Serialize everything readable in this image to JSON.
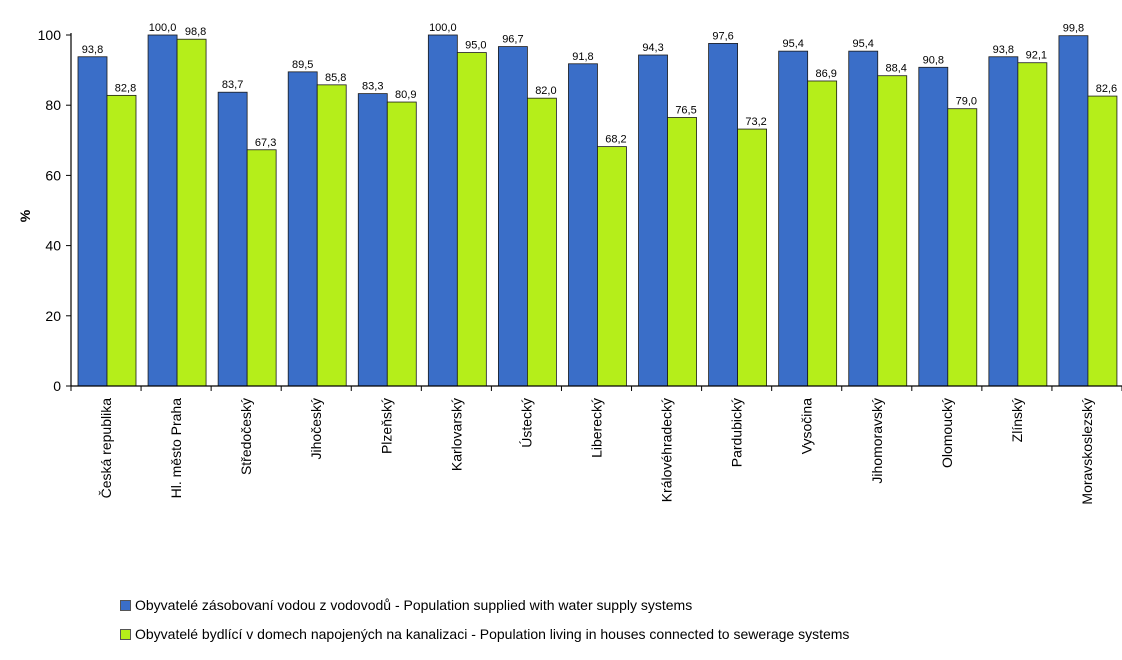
{
  "chart_data": {
    "type": "bar",
    "ylabel": "%",
    "ylim": [
      0,
      100
    ],
    "yticks": [
      0,
      20,
      40,
      60,
      80,
      100
    ],
    "grid": false,
    "legend_position": "bottom",
    "categories": [
      "Česká republika",
      "Hl. město Praha",
      "Středočeský",
      "Jihočeský",
      "Plzeňský",
      "Karlovarský",
      "Ústecký",
      "Liberecký",
      "Královéhradecký",
      "Pardubický",
      "Vysočina",
      "Jihomoravský",
      "Olomoucký",
      "Zlínský",
      "Moravskoslezský"
    ],
    "series": [
      {
        "name": "Obyvatelé zásobovaní vodou z vodovodů - Population supplied with water supply systems",
        "color": "#3a6ec8",
        "values": [
          93.8,
          100.0,
          83.7,
          89.5,
          83.3,
          100.0,
          96.7,
          91.8,
          94.3,
          97.6,
          95.4,
          95.4,
          90.8,
          93.8,
          99.8
        ],
        "labels": [
          "93,8",
          "100,0",
          "83,7",
          "89,5",
          "83,3",
          "100,0",
          "96,7",
          "91,8",
          "94,3",
          "97,6",
          "95,4",
          "95,4",
          "90,8",
          "93,8",
          "99,8"
        ]
      },
      {
        "name": "Obyvatelé bydlící v domech napojených na kanalizaci - Population living in houses connected to sewerage systems",
        "color": "#b5ee1a",
        "values": [
          82.8,
          98.8,
          67.3,
          85.8,
          80.9,
          95.0,
          82.0,
          68.2,
          76.5,
          73.2,
          86.9,
          88.4,
          79.0,
          92.1,
          82.6
        ],
        "labels": [
          "82,8",
          "98,8",
          "67,3",
          "85,8",
          "80,9",
          "95,0",
          "82,0",
          "68,2",
          "76,5",
          "73,2",
          "86,9",
          "88,4",
          "79,0",
          "92,1",
          "82,6"
        ]
      }
    ]
  }
}
